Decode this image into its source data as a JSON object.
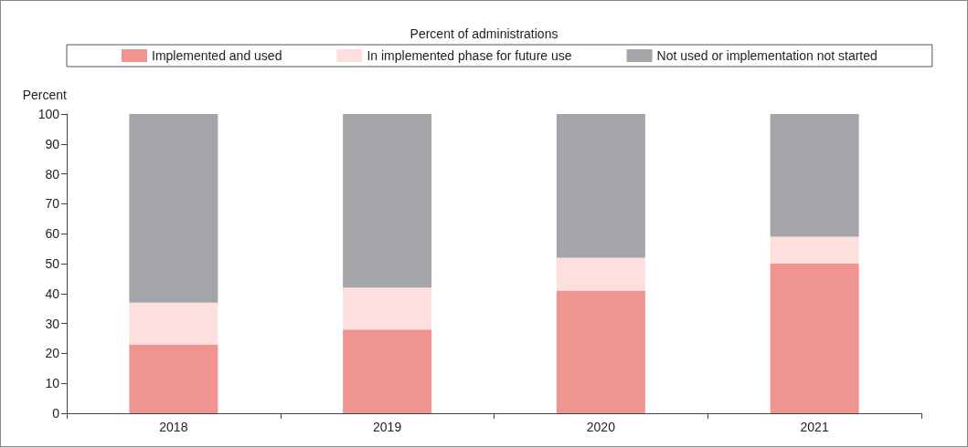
{
  "chart_data": {
    "type": "bar",
    "stacked": true,
    "legend_title": "Percent of administrations",
    "ylabel": "Percent",
    "categories": [
      "2018",
      "2019",
      "2020",
      "2021"
    ],
    "series": [
      {
        "name": "Implemented and used",
        "color": "#f09490",
        "values": [
          23,
          28,
          41,
          50
        ]
      },
      {
        "name": "In implemented phase for future use",
        "color": "#fde0de",
        "values": [
          14,
          14,
          11,
          9
        ]
      },
      {
        "name": "Not used or implementation not started",
        "color": "#a4a5a8",
        "values": [
          63,
          58,
          48,
          41
        ]
      }
    ],
    "ylim": [
      0,
      100
    ],
    "yticks": [
      0,
      10,
      20,
      30,
      40,
      50,
      60,
      70,
      80,
      90,
      100
    ],
    "grid": false,
    "legend": "top"
  }
}
